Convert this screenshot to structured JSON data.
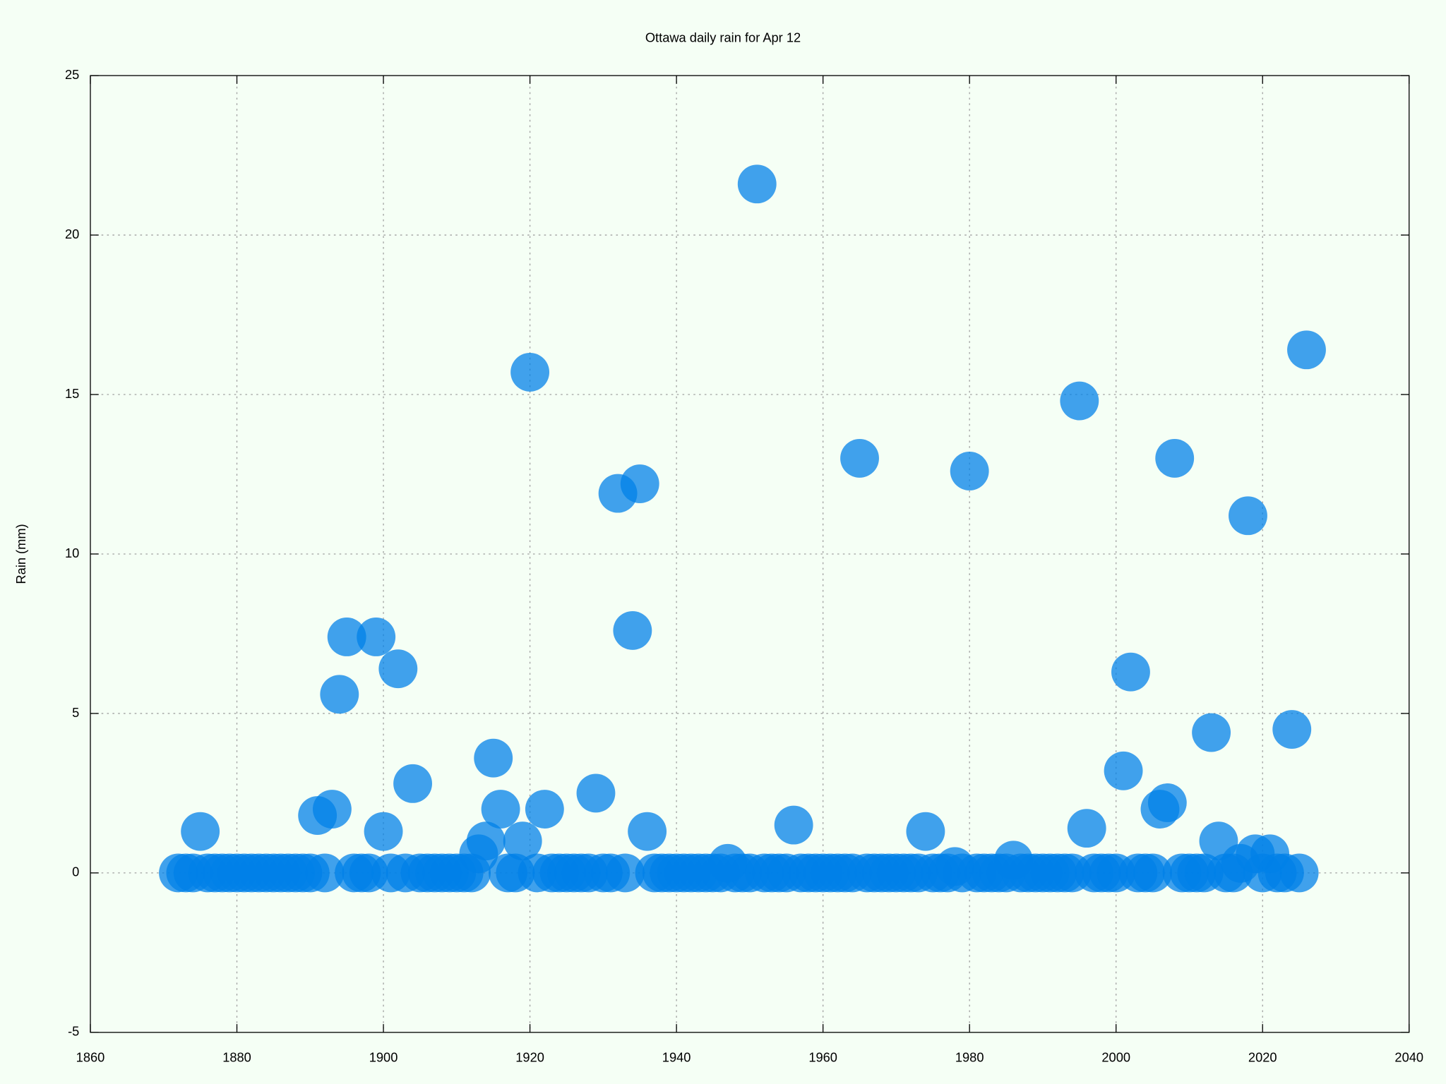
{
  "chart_data": {
    "type": "scatter",
    "title": "Ottawa daily rain for Apr 12",
    "y_label": "Rain (mm)",
    "color": "#0080e8",
    "grid": true,
    "xlim": [
      1860,
      2040
    ],
    "xticks": [
      1860,
      1880,
      1900,
      1920,
      1940,
      1960,
      1980,
      2000,
      2020,
      2040
    ],
    "ylim": [
      -5,
      25
    ],
    "yticks": [
      -5,
      0,
      5,
      10,
      15,
      20,
      25
    ],
    "x": [
      1872,
      1873,
      1874,
      1875,
      1876,
      1877,
      1878,
      1879,
      1880,
      1881,
      1882,
      1883,
      1884,
      1885,
      1886,
      1887,
      1888,
      1889,
      1890,
      1891,
      1892,
      1893,
      1894,
      1895,
      1896,
      1897,
      1898,
      1899,
      1900,
      1901,
      1902,
      1903,
      1904,
      1905,
      1906,
      1907,
      1908,
      1909,
      1910,
      1911,
      1912,
      1913,
      1914,
      1915,
      1916,
      1917,
      1918,
      1919,
      1920,
      1921,
      1922,
      1923,
      1924,
      1925,
      1926,
      1927,
      1928,
      1929,
      1930,
      1931,
      1932,
      1933,
      1934,
      1935,
      1936,
      1937,
      1938,
      1939,
      1940,
      1941,
      1942,
      1943,
      1944,
      1945,
      1946,
      1947,
      1948,
      1949,
      1950,
      1951,
      1952,
      1953,
      1954,
      1955,
      1956,
      1957,
      1958,
      1959,
      1960,
      1961,
      1962,
      1963,
      1964,
      1965,
      1966,
      1967,
      1968,
      1969,
      1970,
      1971,
      1972,
      1973,
      1974,
      1975,
      1976,
      1977,
      1978,
      1979,
      1980,
      1981,
      1982,
      1983,
      1984,
      1985,
      1986,
      1987,
      1988,
      1989,
      1990,
      1991,
      1992,
      1993,
      1994,
      1995,
      1996,
      1997,
      1998,
      1999,
      2000,
      2001,
      2002,
      2003,
      2004,
      2005,
      2006,
      2007,
      2008,
      2009,
      2010,
      2011,
      2012,
      2013,
      2014,
      2015,
      2016,
      2017,
      2018,
      2019,
      2020,
      2021,
      2022,
      2023,
      2024,
      2025,
      2026
    ],
    "values": [
      0,
      0,
      0,
      1.3,
      0,
      0,
      0,
      0,
      0,
      0,
      0,
      0,
      0,
      0,
      0,
      0,
      0,
      0,
      0,
      1.8,
      0,
      2.0,
      5.6,
      7.4,
      0,
      0,
      0,
      7.4,
      1.3,
      0,
      6.4,
      0,
      2.8,
      0,
      0,
      0,
      0,
      0,
      0,
      0,
      0,
      0.6,
      1.0,
      3.6,
      2.0,
      0,
      0,
      1.0,
      15.7,
      0,
      2.0,
      0,
      0,
      0,
      0,
      0,
      0,
      2.5,
      0,
      0,
      11.9,
      0,
      7.6,
      12.2,
      1.3,
      0,
      0,
      0,
      0,
      0,
      0,
      0,
      0,
      0,
      0,
      0.3,
      0,
      0,
      0,
      21.6,
      0,
      0,
      0,
      0,
      1.5,
      0,
      0,
      0,
      0,
      0,
      0,
      0,
      0,
      13.0,
      0,
      0,
      0,
      0,
      0,
      0,
      0,
      0,
      1.3,
      0,
      0,
      0,
      0.2,
      0,
      12.6,
      0,
      0,
      0,
      0,
      0,
      0.4,
      0,
      0,
      0,
      0,
      0,
      0,
      0,
      0,
      14.8,
      1.4,
      0,
      0,
      0,
      0,
      3.2,
      6.3,
      0,
      0,
      0,
      2.0,
      2.2,
      13.0,
      0,
      0,
      0,
      0,
      4.4,
      1.0,
      0,
      0,
      0.3,
      11.2,
      0.6,
      0,
      0.6,
      0,
      0,
      4.5,
      0,
      16.4
    ]
  }
}
